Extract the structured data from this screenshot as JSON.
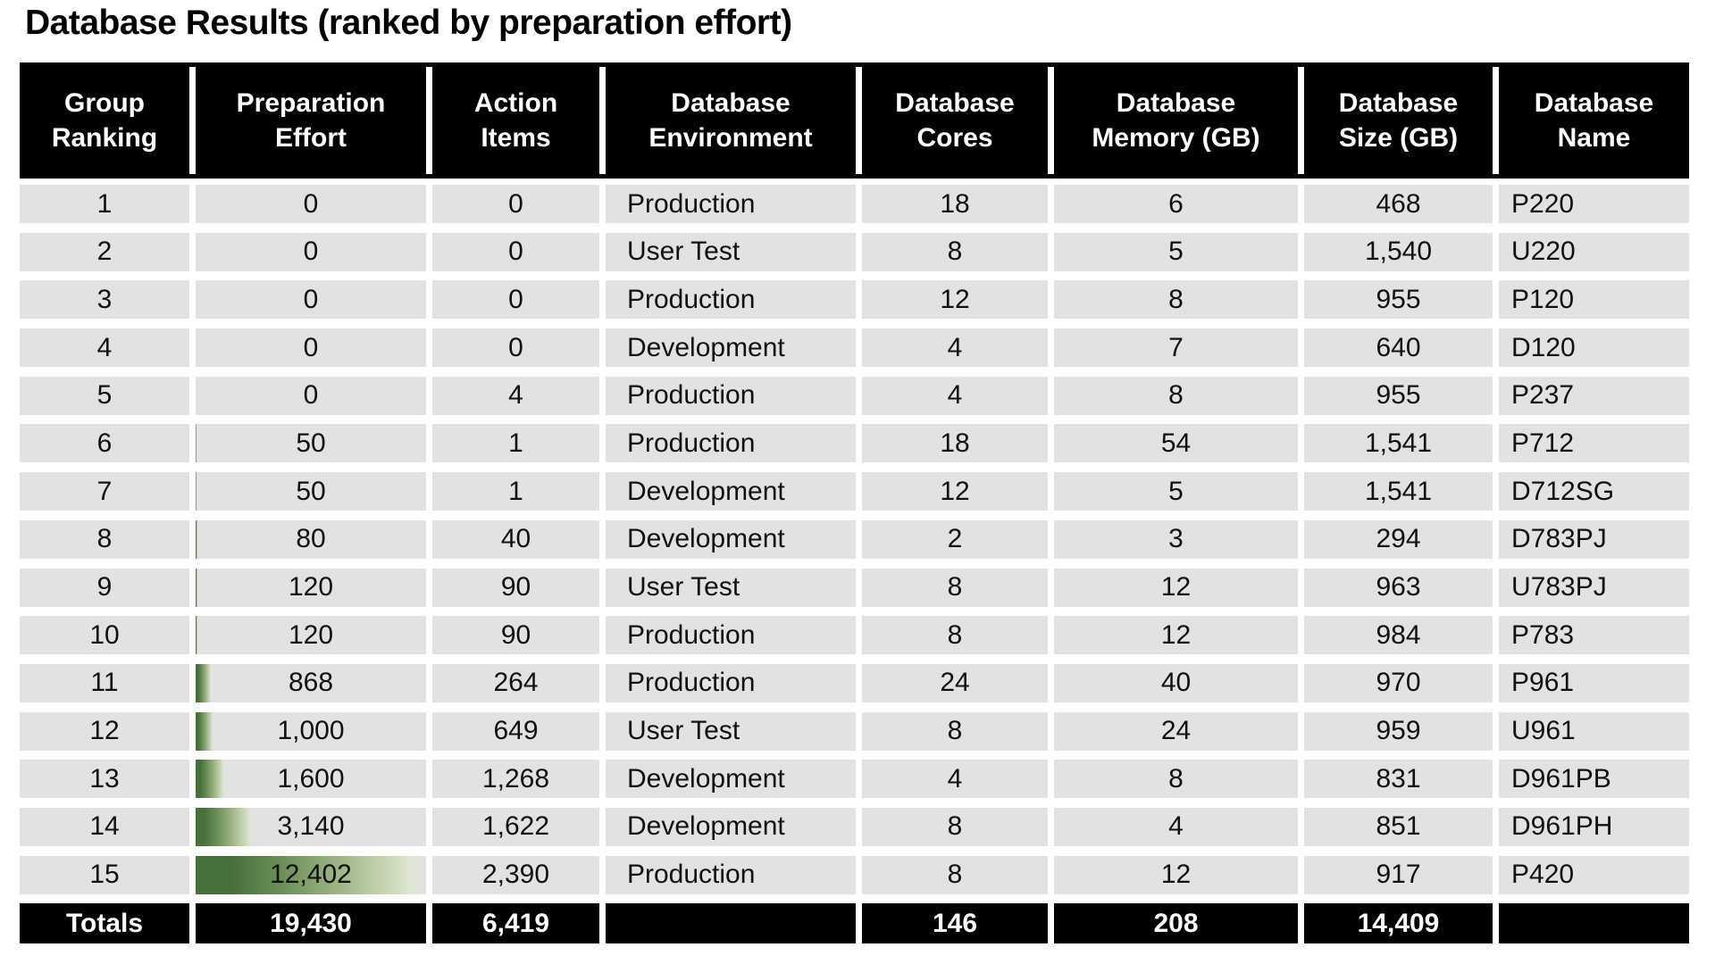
{
  "title": "Database Results (ranked by preparation effort)",
  "colors": {
    "header_bg": "#000000",
    "header_text": "#ffffff",
    "row_bg": "#e2e2e2",
    "body_text": "#111111",
    "databar_dark_green": "#48703d",
    "databar_light_green": "#dde7d2"
  },
  "chart_data": {
    "type": "table",
    "title": "Database Results (ranked by preparation effort)",
    "columns": [
      {
        "id": "group_ranking",
        "label_lines": [
          "Group",
          "Ranking"
        ]
      },
      {
        "id": "preparation_effort",
        "label_lines": [
          "Preparation",
          "Effort"
        ]
      },
      {
        "id": "action_items",
        "label_lines": [
          "Action",
          "Items"
        ]
      },
      {
        "id": "database_environment",
        "label_lines": [
          "Database",
          "Environment"
        ]
      },
      {
        "id": "database_cores",
        "label_lines": [
          "Database",
          "Cores"
        ]
      },
      {
        "id": "database_memory_gb",
        "label_lines": [
          "Database",
          "Memory (GB)"
        ]
      },
      {
        "id": "database_size_gb",
        "label_lines": [
          "Database",
          "Size (GB)"
        ]
      },
      {
        "id": "database_name",
        "label_lines": [
          "Database",
          "Name"
        ]
      }
    ],
    "databar_column": "preparation_effort",
    "databar_max": 12402,
    "rows": [
      {
        "group_ranking": "1",
        "preparation_effort": "0",
        "preparation_effort_value": 0,
        "action_items": "0",
        "database_environment": "Production",
        "database_cores": "18",
        "database_memory_gb": "6",
        "database_size_gb": "468",
        "database_name": "P220"
      },
      {
        "group_ranking": "2",
        "preparation_effort": "0",
        "preparation_effort_value": 0,
        "action_items": "0",
        "database_environment": "User Test",
        "database_cores": "8",
        "database_memory_gb": "5",
        "database_size_gb": "1,540",
        "database_name": "U220"
      },
      {
        "group_ranking": "3",
        "preparation_effort": "0",
        "preparation_effort_value": 0,
        "action_items": "0",
        "database_environment": "Production",
        "database_cores": "12",
        "database_memory_gb": "8",
        "database_size_gb": "955",
        "database_name": "P120"
      },
      {
        "group_ranking": "4",
        "preparation_effort": "0",
        "preparation_effort_value": 0,
        "action_items": "0",
        "database_environment": "Development",
        "database_cores": "4",
        "database_memory_gb": "7",
        "database_size_gb": "640",
        "database_name": "D120"
      },
      {
        "group_ranking": "5",
        "preparation_effort": "0",
        "preparation_effort_value": 0,
        "action_items": "4",
        "database_environment": "Production",
        "database_cores": "4",
        "database_memory_gb": "8",
        "database_size_gb": "955",
        "database_name": "P237"
      },
      {
        "group_ranking": "6",
        "preparation_effort": "50",
        "preparation_effort_value": 50,
        "action_items": "1",
        "database_environment": "Production",
        "database_cores": "18",
        "database_memory_gb": "54",
        "database_size_gb": "1,541",
        "database_name": "P712"
      },
      {
        "group_ranking": "7",
        "preparation_effort": "50",
        "preparation_effort_value": 50,
        "action_items": "1",
        "database_environment": "Development",
        "database_cores": "12",
        "database_memory_gb": "5",
        "database_size_gb": "1,541",
        "database_name": "D712SG"
      },
      {
        "group_ranking": "8",
        "preparation_effort": "80",
        "preparation_effort_value": 80,
        "action_items": "40",
        "database_environment": "Development",
        "database_cores": "2",
        "database_memory_gb": "3",
        "database_size_gb": "294",
        "database_name": "D783PJ"
      },
      {
        "group_ranking": "9",
        "preparation_effort": "120",
        "preparation_effort_value": 120,
        "action_items": "90",
        "database_environment": "User Test",
        "database_cores": "8",
        "database_memory_gb": "12",
        "database_size_gb": "963",
        "database_name": "U783PJ"
      },
      {
        "group_ranking": "10",
        "preparation_effort": "120",
        "preparation_effort_value": 120,
        "action_items": "90",
        "database_environment": "Production",
        "database_cores": "8",
        "database_memory_gb": "12",
        "database_size_gb": "984",
        "database_name": "P783"
      },
      {
        "group_ranking": "11",
        "preparation_effort": "868",
        "preparation_effort_value": 868,
        "action_items": "264",
        "database_environment": "Production",
        "database_cores": "24",
        "database_memory_gb": "40",
        "database_size_gb": "970",
        "database_name": "P961"
      },
      {
        "group_ranking": "12",
        "preparation_effort": "1,000",
        "preparation_effort_value": 1000,
        "action_items": "649",
        "database_environment": "User Test",
        "database_cores": "8",
        "database_memory_gb": "24",
        "database_size_gb": "959",
        "database_name": "U961"
      },
      {
        "group_ranking": "13",
        "preparation_effort": "1,600",
        "preparation_effort_value": 1600,
        "action_items": "1,268",
        "database_environment": "Development",
        "database_cores": "4",
        "database_memory_gb": "8",
        "database_size_gb": "831",
        "database_name": "D961PB"
      },
      {
        "group_ranking": "14",
        "preparation_effort": "3,140",
        "preparation_effort_value": 3140,
        "action_items": "1,622",
        "database_environment": "Development",
        "database_cores": "8",
        "database_memory_gb": "4",
        "database_size_gb": "851",
        "database_name": "D961PH"
      },
      {
        "group_ranking": "15",
        "preparation_effort": "12,402",
        "preparation_effort_value": 12402,
        "action_items": "2,390",
        "database_environment": "Production",
        "database_cores": "8",
        "database_memory_gb": "12",
        "database_size_gb": "917",
        "database_name": "P420"
      }
    ],
    "totals_row": {
      "group_ranking": "Totals",
      "preparation_effort": "19,430",
      "action_items": "6,419",
      "database_environment": "",
      "database_cores": "146",
      "database_memory_gb": "208",
      "database_size_gb": "14,409",
      "database_name": ""
    }
  }
}
